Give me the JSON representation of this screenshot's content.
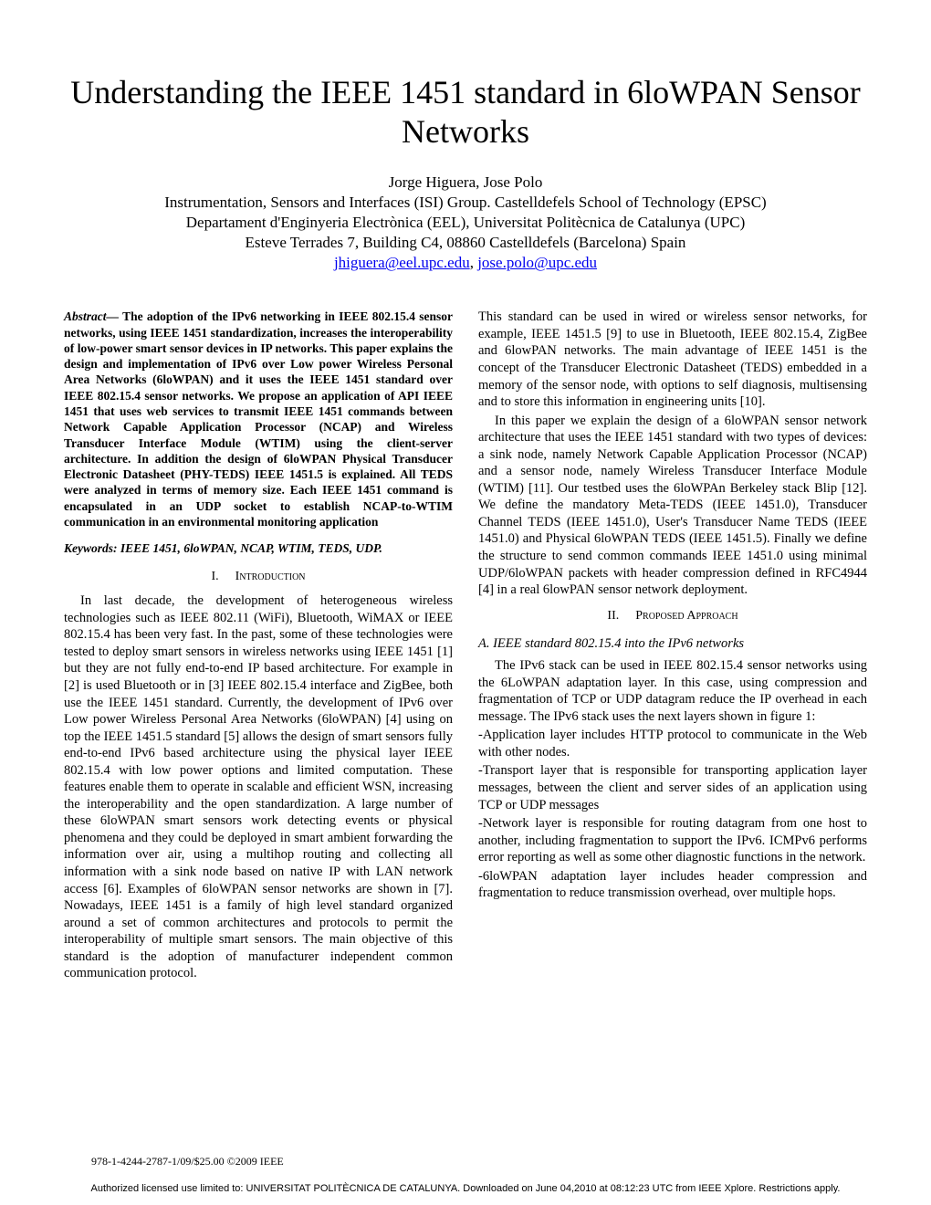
{
  "title": "Understanding the IEEE 1451 standard in 6loWPAN Sensor Networks",
  "authors": "Jorge Higuera, Jose Polo",
  "affiliation_lines": [
    "Instrumentation, Sensors and Interfaces (ISI) Group. Castelldefels School of Technology (EPSC)",
    "Departament d'Enginyeria Electrònica (EEL), Universitat Politècnica de Catalunya (UPC)",
    "Esteve Terrades 7, Building C4, 08860 Castelldefels (Barcelona) Spain"
  ],
  "emails": {
    "e1": "jhiguera@eel.upc.edu",
    "sep": ", ",
    "e2": "jose.polo@upc.edu"
  },
  "abstract_lead": "Abstract—",
  "abstract": " The adoption of the IPv6 networking in IEEE 802.15.4 sensor networks, using IEEE 1451 standardization, increases the interoperability of low-power smart sensor devices in IP networks. This paper explains the design and implementation of IPv6 over Low power Wireless Personal Area Networks (6loWPAN) and it uses the IEEE 1451 standard over IEEE 802.15.4 sensor networks. We propose an application of API IEEE 1451 that uses web services to transmit IEEE 1451 commands between Network Capable Application Processor (NCAP) and Wireless Transducer Interface Module (WTIM) using the client-server architecture. In addition the design of 6loWPAN Physical Transducer Electronic Datasheet (PHY-TEDS) IEEE 1451.5 is explained. All TEDS were analyzed in terms of memory size. Each IEEE 1451 command is encapsulated in an UDP socket to establish NCAP-to-WTIM communication in an environmental monitoring application",
  "keywords": "Keywords: IEEE 1451, 6loWPAN,  NCAP, WTIM, TEDS, UDP.",
  "section1_num": "I.",
  "section1_title": "Introduction",
  "intro_para": "In last decade, the development of heterogeneous wireless technologies such as IEEE 802.11 (WiFi), Bluetooth, WiMAX or IEEE 802.15.4 has been very fast. In the past, some of these technologies were tested to deploy smart sensors in wireless networks using IEEE 1451 [1] but they are not fully end-to-end IP based architecture. For example in [2] is used Bluetooth or in [3] IEEE 802.15.4 interface and ZigBee, both use the IEEE 1451 standard. Currently, the development of IPv6 over Low power Wireless Personal Area Networks (6loWPAN) [4] using on top the IEEE 1451.5 standard [5] allows the design of smart sensors fully end-to-end IPv6 based architecture using the physical layer IEEE 802.15.4 with low power options and limited computation. These features enable them to operate in scalable and efficient WSN, increasing the interoperability and the open standardization. A large number of these 6loWPAN smart sensors work detecting events or physical phenomena and they could be deployed in smart ambient forwarding the information over air, using a multihop routing and collecting all information with a sink node based on native IP with LAN network access [6]. Examples of 6loWPAN sensor networks are shown in [7]. Nowadays, IEEE 1451 is a family of high level standard organized around a set of common architectures and protocols to permit the interoperability of multiple smart sensors. The main objective of this standard is the adoption of manufacturer independent common communication protocol.",
  "right_para1": "This standard can be used in wired or wireless sensor networks, for example, IEEE 1451.5 [9] to use in Bluetooth, IEEE 802.15.4, ZigBee and 6lowPAN networks. The main advantage of IEEE 1451 is the concept of the Transducer Electronic Datasheet (TEDS) embedded in a memory of the sensor node, with options to self diagnosis, multisensing and to store this information in engineering units [10].",
  "right_para2": "In this paper we explain the design of a 6loWPAN sensor network architecture that uses the IEEE 1451 standard with two types of devices: a sink node, namely Network Capable Application Processor (NCAP) and a sensor node, namely Wireless Transducer Interface Module (WTIM) [11]. Our testbed uses the 6loWPAn Berkeley stack Blip [12]. We define the mandatory Meta-TEDS (IEEE 1451.0), Transducer Channel TEDS (IEEE 1451.0), User's Transducer Name TEDS (IEEE 1451.0) and Physical 6loWPAN TEDS (IEEE 1451.5). Finally we define the structure to send common commands IEEE 1451.0 using minimal UDP/6loWPAN packets with header compression defined in RFC4944 [4] in a real 6lowPAN sensor network deployment.",
  "section2_num": "II.",
  "section2_title": "Proposed Approach",
  "subsectionA": "A.    IEEE standard 802.15.4  into the IPv6  networks",
  "subA_para1": "The IPv6 stack can be used in IEEE 802.15.4 sensor networks using the 6LoWPAN adaptation layer. In this case, using compression and fragmentation of TCP or UDP datagram reduce the IP overhead in each message. The IPv6 stack uses the next layers shown in figure 1:",
  "layer_app": "-Application layer includes HTTP protocol to communicate in the Web with other nodes.",
  "layer_transport": "-Transport layer that is responsible for transporting application layer messages, between the client and server sides of an application using TCP or UDP messages",
  "layer_network": "-Network layer is responsible for routing datagram from one host to another, including fragmentation to support the IPv6. ICMPv6 performs error reporting as well as some other diagnostic functions in the network.",
  "layer_6lowpan": "-6loWPAN adaptation layer includes header compression and fragmentation to reduce transmission overhead, over multiple hops.",
  "footer_isbn": "978-1-4244-2787-1/09/$25.00 ©2009 IEEE",
  "footer_license": "Authorized licensed use limited to: UNIVERSITAT POLITÈCNICA DE CATALUNYA. Downloaded on June 04,2010 at 08:12:23 UTC from IEEE Xplore.  Restrictions apply."
}
